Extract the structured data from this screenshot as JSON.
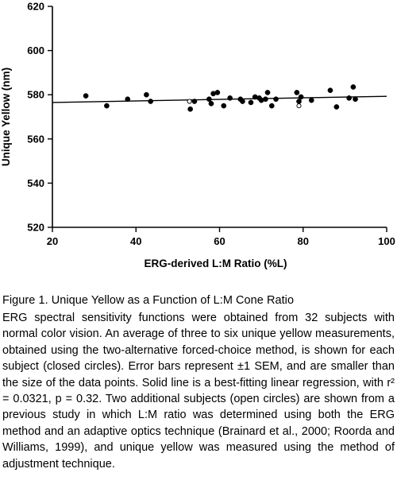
{
  "chart_data": {
    "type": "scatter",
    "xlabel": "ERG-derived L:M Ratio (%L)",
    "ylabel": "Unique Yellow (nm)",
    "xlim": [
      20,
      100
    ],
    "ylim": [
      520,
      620
    ],
    "xticks": [
      "20",
      "40",
      "60",
      "80",
      "100"
    ],
    "yticks": [
      "520",
      "540",
      "560",
      "580",
      "600",
      "620"
    ],
    "grid": false,
    "series": [
      {
        "marker": "closed-circle",
        "points": [
          [
            28,
            579.5
          ],
          [
            33,
            575
          ],
          [
            38,
            578
          ],
          [
            42.5,
            580
          ],
          [
            43.5,
            577
          ],
          [
            53,
            573.5
          ],
          [
            54,
            577
          ],
          [
            57.5,
            578
          ],
          [
            58,
            576
          ],
          [
            58.5,
            580.5
          ],
          [
            59.5,
            581
          ],
          [
            61,
            575
          ],
          [
            62.5,
            578.5
          ],
          [
            65,
            578
          ],
          [
            65.5,
            577
          ],
          [
            67.5,
            576.5
          ],
          [
            68.5,
            579
          ],
          [
            69.5,
            578.5
          ],
          [
            70,
            577.5
          ],
          [
            71,
            578
          ],
          [
            71.5,
            581
          ],
          [
            72.5,
            575
          ],
          [
            73.5,
            578
          ],
          [
            78.5,
            581
          ],
          [
            79,
            577
          ],
          [
            79.5,
            579
          ],
          [
            82,
            577.5
          ],
          [
            86.5,
            582
          ],
          [
            88,
            574.5
          ],
          [
            91,
            578.5
          ],
          [
            92,
            583.5
          ],
          [
            92.5,
            578
          ]
        ]
      },
      {
        "marker": "open-circle",
        "points": [
          [
            52.8,
            577
          ],
          [
            79,
            575
          ]
        ]
      }
    ],
    "regression": {
      "intercept": 575.8,
      "slope": 0.035,
      "x_range": [
        20,
        100
      ]
    }
  },
  "caption": {
    "title": "Figure 1. Unique Yellow as a Function of L:M Cone Ratio",
    "body": "ERG spectral sensitivity functions were obtained from 32 subjects with normal color vision. An average of three to six unique yellow measurements, obtained using the two-alternative forced-choice method, is shown for each subject (closed circles). Error bars represent ±1 SEM, and are smaller than the size of the data points. Solid line is a best-fitting linear regression, with r² = 0.0321, p = 0.32. Two additional subjects (open circles) are shown from a previous study in which L:M ratio was determined using both the ERG method and an adaptive optics technique (Brainard et al., 2000; Roorda and Williams, 1999), and unique yellow was measured using the method of adjustment technique."
  }
}
